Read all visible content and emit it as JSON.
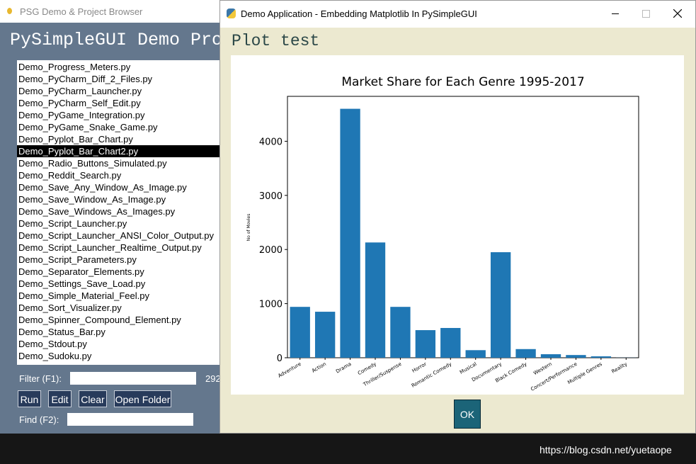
{
  "background_window": {
    "title": "PSG Demo & Project Browser",
    "heading": "PySimpleGUI Demo Prog",
    "files": [
      "Demo_Progress_Meters.py",
      "Demo_PyCharm_Diff_2_Files.py",
      "Demo_PyCharm_Launcher.py",
      "Demo_PyCharm_Self_Edit.py",
      "Demo_PyGame_Integration.py",
      "Demo_PyGame_Snake_Game.py",
      "Demo_Pyplot_Bar_Chart.py",
      "Demo_Pyplot_Bar_Chart2.py",
      "Demo_Radio_Buttons_Simulated.py",
      "Demo_Reddit_Search.py",
      "Demo_Save_Any_Window_As_Image.py",
      "Demo_Save_Window_As_Image.py",
      "Demo_Save_Windows_As_Images.py",
      "Demo_Script_Launcher.py",
      "Demo_Script_Launcher_ANSI_Color_Output.py",
      "Demo_Script_Launcher_Realtime_Output.py",
      "Demo_Script_Parameters.py",
      "Demo_Separator_Elements.py",
      "Demo_Settings_Save_Load.py",
      "Demo_Simple_Material_Feel.py",
      "Demo_Sort_Visualizer.py",
      "Demo_Spinner_Compound_Element.py",
      "Demo_Status_Bar.py",
      "Demo_Stdout.py",
      "Demo_Sudoku.py"
    ],
    "filter_label": "Filter (F1):",
    "count": "292",
    "buttons": [
      "Run",
      "Edit",
      "Clear",
      "Open Folder"
    ],
    "find_label": "Find (F2):"
  },
  "dialog": {
    "title": "Demo Application - Embedding Matplotlib In PySimpleGUI",
    "heading": "Plot test",
    "ok_button": "OK"
  },
  "chart_data": {
    "type": "bar",
    "title": "Market Share for Each Genre 1995-2017",
    "y_label": "No of Movies",
    "categories": [
      "Adventure",
      "Action",
      "Drama",
      "Comedy",
      "Thriller/Suspense",
      "Horror",
      "Romantic Comedy",
      "Musical",
      "Documentary",
      "Black Comedy",
      "Western",
      "Concert/Performance",
      "Multiple Genres",
      "Reality"
    ],
    "values": [
      940,
      850,
      4600,
      2130,
      940,
      510,
      550,
      140,
      1950,
      160,
      65,
      50,
      26,
      2
    ],
    "color": "#1f77b4",
    "ylim": [
      0,
      4830
    ],
    "yticks": [
      0,
      1000,
      2000,
      3000,
      4000
    ],
    "grid": false
  },
  "watermark": "https://blog.csdn.net/yuetaope"
}
